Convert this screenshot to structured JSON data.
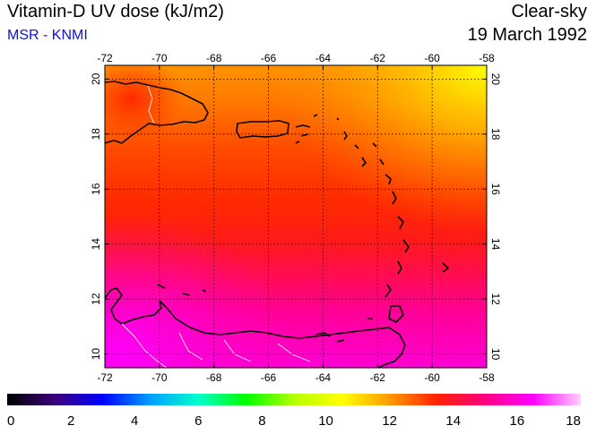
{
  "header": {
    "title": "Vitamin-D UV dose (kJ/m2)",
    "source": "MSR - KNMI",
    "condition": "Clear-sky",
    "date": "19 March 1992"
  },
  "map": {
    "lon_range": [
      -72,
      -58
    ],
    "lat_range": [
      9.5,
      20.5
    ],
    "lon_ticks": [
      "-72",
      "-70",
      "-68",
      "-66",
      "-64",
      "-62",
      "-60",
      "-58"
    ],
    "lat_ticks": [
      "10",
      "12",
      "14",
      "16",
      "18",
      "20"
    ],
    "gridlines": true,
    "coastline_color": "#000000",
    "border_color": "#ffffff"
  },
  "colorbar": {
    "min": 0,
    "max": 18,
    "tick_labels": [
      "0",
      "2",
      "4",
      "6",
      "8",
      "10",
      "12",
      "14",
      "16",
      "18"
    ],
    "colors": [
      "#000000",
      "#3a007a",
      "#0000ff",
      "#00a0ff",
      "#00ffcc",
      "#00ff00",
      "#b4ff00",
      "#ffff00",
      "#ff9a00",
      "#ff2000",
      "#ff0080",
      "#ff00ff",
      "#ffd0ff"
    ]
  }
}
